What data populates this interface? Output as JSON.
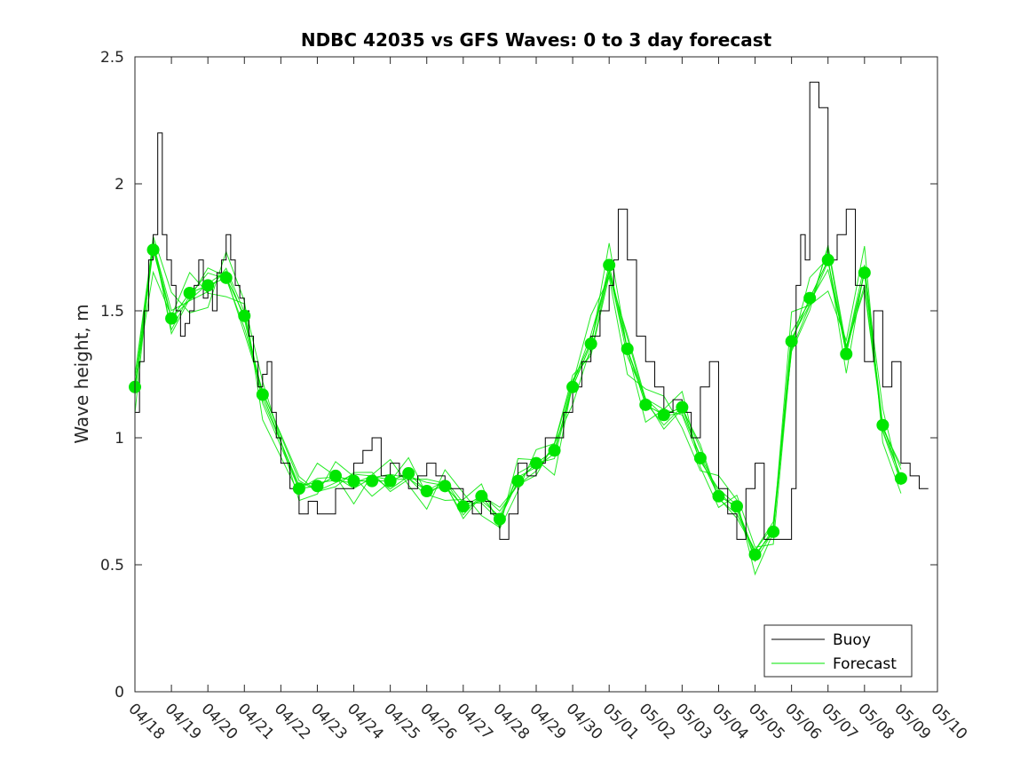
{
  "chart_data": {
    "type": "line",
    "title": "NDBC 42035 vs GFS Waves: 0 to 3 day forecast",
    "xlabel": "",
    "ylabel": "Wave height, m",
    "ylim": [
      0,
      2.5
    ],
    "yticks": [
      "0",
      "0.5",
      "1",
      "1.5",
      "2",
      "2.5"
    ],
    "xlim": [
      "04/18",
      "05/10"
    ],
    "xticks": [
      "04/18",
      "04/19",
      "04/20",
      "04/21",
      "04/22",
      "04/23",
      "04/24",
      "04/25",
      "04/26",
      "04/27",
      "04/28",
      "04/29",
      "04/30",
      "05/01",
      "05/02",
      "05/03",
      "05/04",
      "05/05",
      "05/06",
      "05/07",
      "05/08",
      "05/09",
      "05/10"
    ],
    "grid": false,
    "legend_position": "bottom-right",
    "colors": {
      "buoy": "#000000",
      "forecast": "#00e600",
      "axis": "#262626"
    },
    "series": [
      {
        "name": "Buoy",
        "style": "line",
        "x": [
          "04/18 00:00",
          "04/18 03:00",
          "04/18 06:00",
          "04/18 09:00",
          "04/18 12:00",
          "04/18 15:00",
          "04/18 18:00",
          "04/18 21:00",
          "04/19 00:00",
          "04/19 03:00",
          "04/19 06:00",
          "04/19 09:00",
          "04/19 12:00",
          "04/19 15:00",
          "04/19 18:00",
          "04/19 21:00",
          "04/20 00:00",
          "04/20 03:00",
          "04/20 06:00",
          "04/20 09:00",
          "04/20 12:00",
          "04/20 15:00",
          "04/20 18:00",
          "04/20 21:00",
          "04/21 00:00",
          "04/21 03:00",
          "04/21 06:00",
          "04/21 09:00",
          "04/21 12:00",
          "04/21 15:00",
          "04/21 18:00",
          "04/21 21:00",
          "04/22 00:00",
          "04/22 06:00",
          "04/22 12:00",
          "04/22 18:00",
          "04/23 00:00",
          "04/23 06:00",
          "04/23 12:00",
          "04/23 18:00",
          "04/24 00:00",
          "04/24 06:00",
          "04/24 12:00",
          "04/24 18:00",
          "04/25 00:00",
          "04/25 06:00",
          "04/25 12:00",
          "04/25 18:00",
          "04/26 00:00",
          "04/26 06:00",
          "04/26 12:00",
          "04/26 18:00",
          "04/27 00:00",
          "04/27 06:00",
          "04/27 12:00",
          "04/27 18:00",
          "04/28 00:00",
          "04/28 06:00",
          "04/28 12:00",
          "04/28 18:00",
          "04/29 00:00",
          "04/29 06:00",
          "04/29 12:00",
          "04/29 18:00",
          "04/30 00:00",
          "04/30 06:00",
          "04/30 12:00",
          "04/30 18:00",
          "05/01 00:00",
          "05/01 03:00",
          "05/01 06:00",
          "05/01 12:00",
          "05/01 18:00",
          "05/02 00:00",
          "05/02 06:00",
          "05/02 12:00",
          "05/02 18:00",
          "05/03 00:00",
          "05/03 06:00",
          "05/03 12:00",
          "05/03 18:00",
          "05/04 00:00",
          "05/04 06:00",
          "05/04 12:00",
          "05/04 18:00",
          "05/05 00:00",
          "05/05 06:00",
          "05/05 12:00",
          "05/05 18:00",
          "05/06 00:00",
          "05/06 03:00",
          "05/06 06:00",
          "05/06 09:00",
          "05/06 12:00",
          "05/06 18:00",
          "05/07 00:00",
          "05/07 06:00",
          "05/07 12:00",
          "05/07 18:00",
          "05/08 00:00",
          "05/08 06:00",
          "05/08 12:00",
          "05/08 18:00",
          "05/09 00:00",
          "05/09 06:00",
          "05/09 12:00"
        ],
        "y": [
          1.1,
          1.3,
          1.5,
          1.7,
          1.8,
          2.2,
          1.8,
          1.7,
          1.6,
          1.5,
          1.4,
          1.45,
          1.5,
          1.6,
          1.7,
          1.55,
          1.6,
          1.5,
          1.65,
          1.7,
          1.8,
          1.7,
          1.6,
          1.55,
          1.5,
          1.4,
          1.3,
          1.2,
          1.25,
          1.3,
          1.1,
          1.0,
          0.9,
          0.8,
          0.7,
          0.75,
          0.7,
          0.7,
          0.8,
          0.8,
          0.9,
          0.95,
          1.0,
          0.85,
          0.9,
          0.85,
          0.8,
          0.85,
          0.9,
          0.85,
          0.8,
          0.8,
          0.75,
          0.7,
          0.75,
          0.7,
          0.6,
          0.7,
          0.9,
          0.85,
          0.9,
          1.0,
          1.0,
          1.1,
          1.2,
          1.3,
          1.4,
          1.5,
          1.6,
          1.7,
          1.9,
          1.7,
          1.4,
          1.3,
          1.2,
          1.1,
          1.15,
          1.1,
          1.0,
          1.2,
          1.3,
          0.8,
          0.7,
          0.6,
          0.8,
          0.9,
          0.6,
          0.6,
          0.6,
          0.8,
          1.6,
          1.8,
          1.7,
          2.4,
          2.3,
          1.7,
          1.8,
          1.9,
          1.6,
          1.3,
          1.5,
          1.2,
          1.3,
          0.9,
          0.85,
          0.8
        ]
      },
      {
        "name": "Forecast",
        "style": "lines-and-markers",
        "x": [
          "04/18 00:00",
          "04/18 12:00",
          "04/19 00:00",
          "04/19 12:00",
          "04/20 00:00",
          "04/20 12:00",
          "04/21 00:00",
          "04/21 12:00",
          "04/22 12:00",
          "04/23 00:00",
          "04/23 12:00",
          "04/24 00:00",
          "04/24 12:00",
          "04/25 00:00",
          "04/25 12:00",
          "04/26 00:00",
          "04/26 12:00",
          "04/27 00:00",
          "04/27 12:00",
          "04/28 00:00",
          "04/28 12:00",
          "04/29 00:00",
          "04/29 12:00",
          "04/30 00:00",
          "04/30 12:00",
          "05/01 00:00",
          "05/01 12:00",
          "05/02 00:00",
          "05/02 12:00",
          "05/03 00:00",
          "05/03 12:00",
          "05/04 00:00",
          "05/04 12:00",
          "05/05 00:00",
          "05/05 12:00",
          "05/06 00:00",
          "05/06 12:00",
          "05/07 00:00",
          "05/07 12:00",
          "05/08 00:00",
          "05/08 12:00",
          "05/09 00:00"
        ],
        "y": [
          1.2,
          1.74,
          1.47,
          1.57,
          1.6,
          1.63,
          1.48,
          1.17,
          0.8,
          0.81,
          0.85,
          0.83,
          0.83,
          0.83,
          0.86,
          0.79,
          0.81,
          0.73,
          0.77,
          0.68,
          0.83,
          0.9,
          0.95,
          1.2,
          1.37,
          1.68,
          1.35,
          1.13,
          1.09,
          1.12,
          0.92,
          0.77,
          0.73,
          0.54,
          0.63,
          1.38,
          1.55,
          1.7,
          1.33,
          1.65,
          1.05,
          0.84
        ]
      }
    ]
  },
  "legend": {
    "buoy_label": "Buoy",
    "forecast_label": "Forecast"
  }
}
